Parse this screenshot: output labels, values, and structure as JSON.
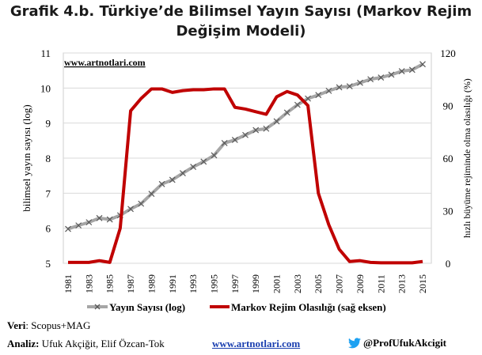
{
  "title_line1": "Grafik 4.b. Türkiye’de Bilimsel Yayın Sayısı (Markov Rejim",
  "title_line2": "Değişim Modeli)",
  "watermark": "www.artnotlari.com",
  "footer": {
    "veri_label": "Veri",
    "veri_text": ": Scopus+MAG",
    "analiz_label": "Analiz:",
    "analiz_text": " Ufuk Akçiğit, Elif Özcan-Tok",
    "site": "www.artnotlari.com",
    "twitter_icon": "twitter-bird-icon",
    "handle": "@ProfUfukAkcigit"
  },
  "colors": {
    "publications": "#a6a6a6",
    "publications_marker": "#595959",
    "regime": "#c00000"
  },
  "chart_data": {
    "type": "line",
    "title": "Grafik 4.b. Türkiye’de Bilimsel Yayın Sayısı (Markov Rejim Değişim Modeli)",
    "ylabel": "bilimsel yayın sayısı (log)",
    "y2label": "hızlı büyüme rejiminde olma olasılığı (%)",
    "ylim": [
      5,
      11
    ],
    "y2lim": [
      0,
      120
    ],
    "yticks": [
      "5",
      "6",
      "7",
      "8",
      "9",
      "10",
      "11"
    ],
    "y2ticks": [
      "0",
      "30",
      "60",
      "90",
      "120"
    ],
    "xticks": [
      "1981",
      "1983",
      "1985",
      "1987",
      "1989",
      "1991",
      "1993",
      "1995",
      "1997",
      "1999",
      "2001",
      "2003",
      "2005",
      "2007",
      "2009",
      "2011",
      "2013",
      "2015"
    ],
    "legend_position": "bottom",
    "series": [
      {
        "name": "Yayın Sayısı (log)",
        "axis": "left",
        "x": [
          1981,
          1982,
          1983,
          1984,
          1985,
          1986,
          1987,
          1988,
          1989,
          1990,
          1991,
          1992,
          1993,
          1994,
          1995,
          1996,
          1997,
          1998,
          1999,
          2000,
          2001,
          2002,
          2003,
          2004,
          2005,
          2006,
          2007,
          2008,
          2009,
          2010,
          2011,
          2012,
          2013,
          2014,
          2015
        ],
        "values": [
          5.98,
          6.08,
          6.17,
          6.29,
          6.25,
          6.37,
          6.55,
          6.7,
          6.98,
          7.26,
          7.38,
          7.57,
          7.75,
          7.9,
          8.08,
          8.43,
          8.52,
          8.66,
          8.8,
          8.84,
          9.05,
          9.3,
          9.52,
          9.7,
          9.8,
          9.92,
          10.02,
          10.05,
          10.15,
          10.25,
          10.3,
          10.38,
          10.48,
          10.52,
          10.68
        ]
      },
      {
        "name": "Markov Rejim Olasılığı (sağ eksen)",
        "axis": "right",
        "x": [
          1981,
          1982,
          1983,
          1984,
          1985,
          1986,
          1987,
          1988,
          1989,
          1990,
          1991,
          1992,
          1993,
          1994,
          1995,
          1996,
          1997,
          1998,
          1999,
          2000,
          2001,
          2002,
          2003,
          2004,
          2005,
          2006,
          2007,
          2008,
          2009,
          2010,
          2011,
          2012,
          2013,
          2014,
          2015
        ],
        "values": [
          0.5,
          0.5,
          0.5,
          1.5,
          0.5,
          20,
          87,
          94,
          99.5,
          99.5,
          97.5,
          98.5,
          99,
          99,
          99.5,
          99.5,
          89,
          88,
          86.5,
          85,
          95,
          98,
          96,
          90,
          40,
          22,
          8,
          1,
          1.5,
          0.5,
          0.3,
          0.3,
          0.3,
          0.3,
          1
        ]
      }
    ]
  }
}
